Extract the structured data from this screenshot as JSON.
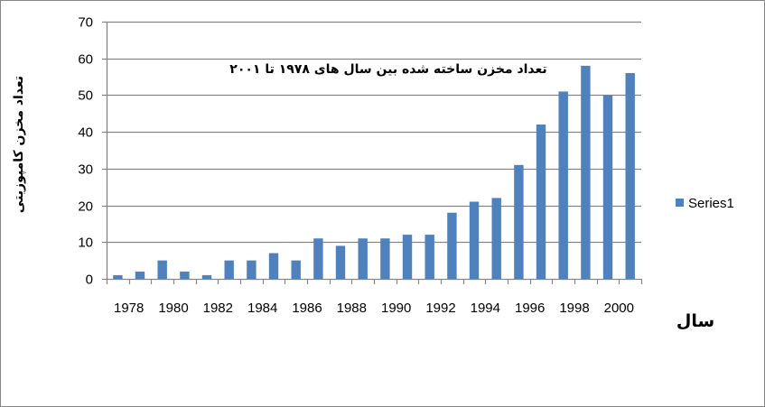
{
  "chart_data": {
    "type": "bar",
    "title": "تعداد مخزن ساخته شده بین سال های ۱۹۷۸ تا ۲۰۰۱",
    "xlabel": "سال",
    "ylabel": "تعداد مخزن کامپوزیتی",
    "categories": [
      "1978",
      "1979",
      "1980",
      "1981",
      "1982",
      "1983",
      "1984",
      "1985",
      "1986",
      "1987",
      "1988",
      "1989",
      "1990",
      "1991",
      "1992",
      "1993",
      "1994",
      "1995",
      "1996",
      "1997",
      "1998",
      "1999",
      "2000",
      "2001"
    ],
    "x_tick_labels": [
      "1978",
      "1980",
      "1982",
      "1984",
      "1986",
      "1988",
      "1990",
      "1992",
      "1994",
      "1996",
      "1998",
      "2000"
    ],
    "series": [
      {
        "name": "Series1",
        "color": "#4F81BD",
        "values": [
          1,
          2,
          5,
          2,
          1,
          5,
          5,
          7,
          5,
          11,
          9,
          11,
          11,
          12,
          12,
          18,
          21,
          22,
          31,
          42,
          51,
          58,
          50,
          56
        ]
      }
    ],
    "ylim": [
      0,
      70
    ],
    "y_ticks": [
      0,
      10,
      20,
      30,
      40,
      50,
      60,
      70
    ],
    "grid": true,
    "legend_position": "right"
  },
  "colors": {
    "bar": "#4F81BD",
    "grid": "#868686",
    "axis": "#868686"
  }
}
